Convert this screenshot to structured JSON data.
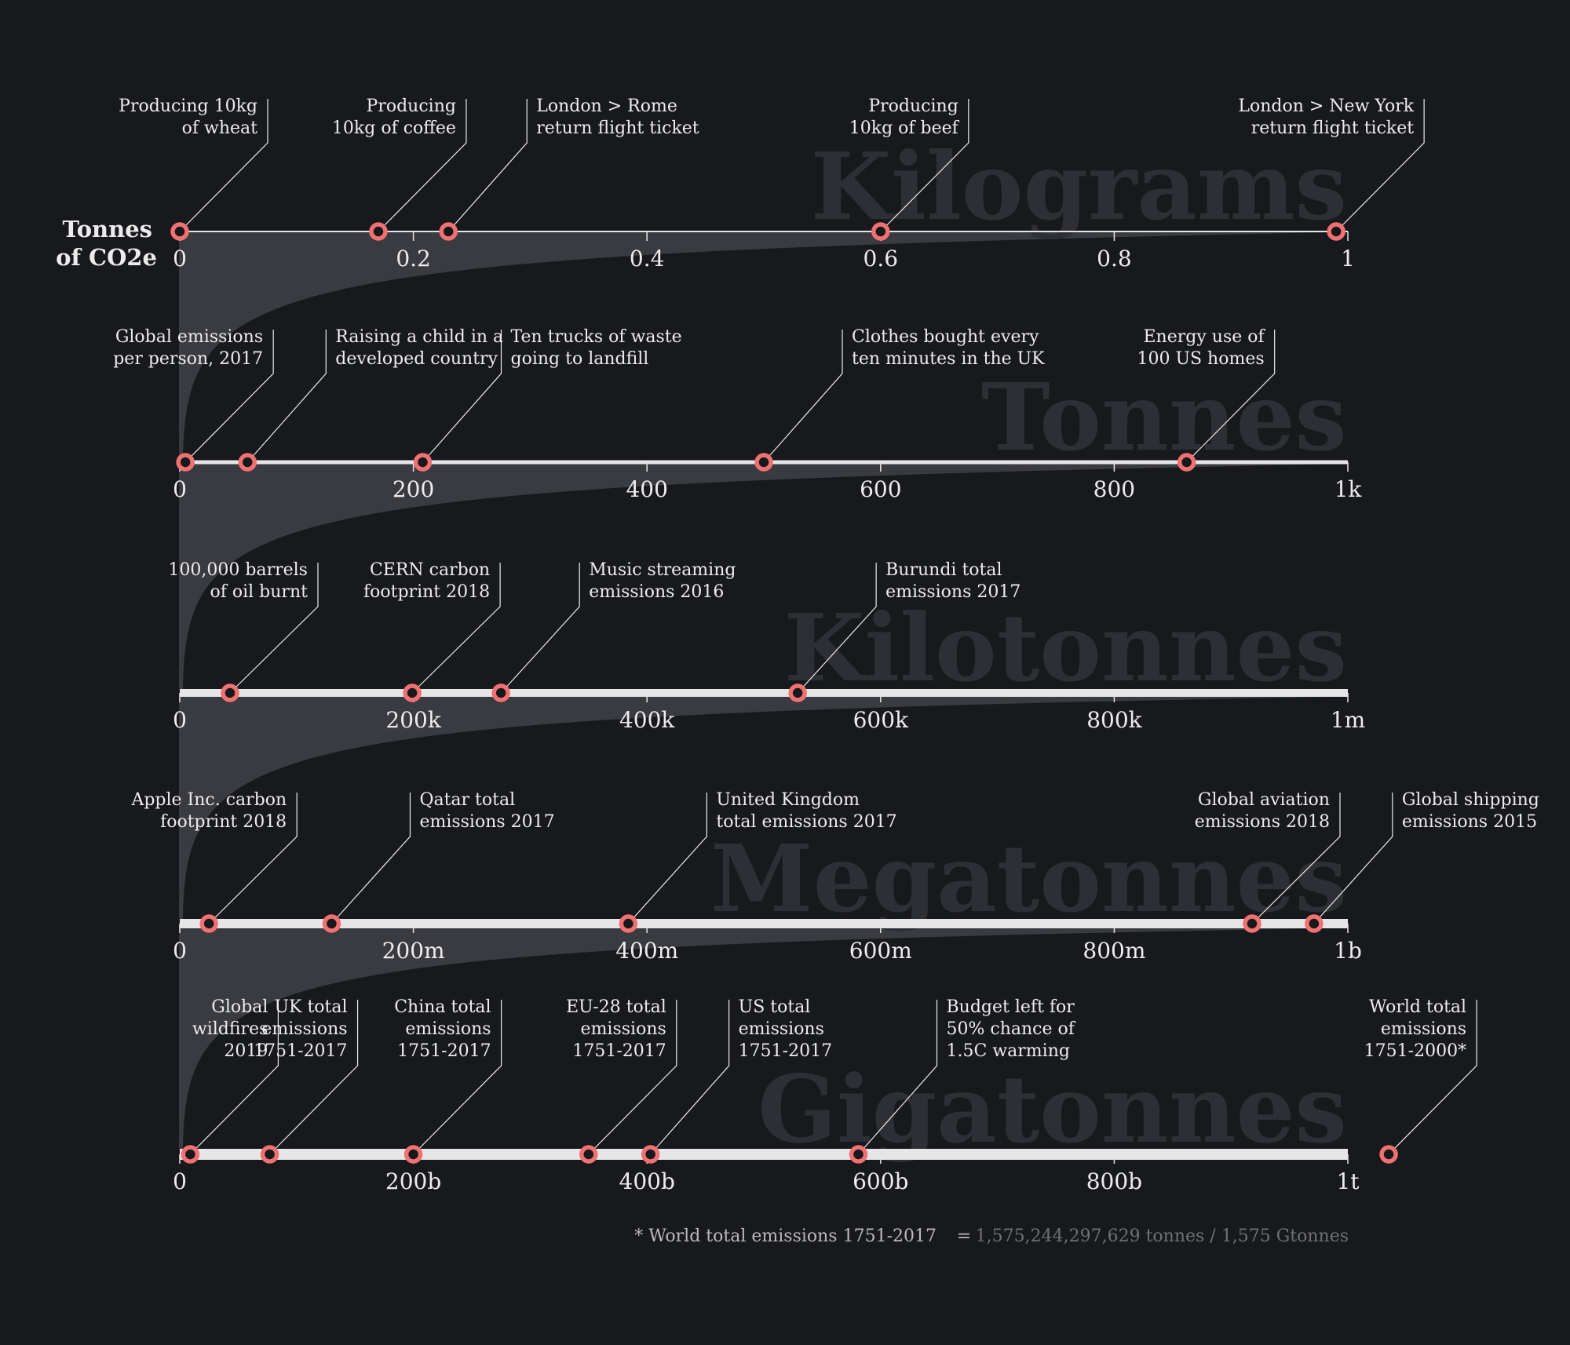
{
  "unit_label": [
    "Tonnes",
    "of CO2e"
  ],
  "footnote": {
    "label": "* World total emissions 1751-2017",
    "equals": "=",
    "value": "1,575,244,297,629 tonnes / 1,575 Gtonnes"
  },
  "colors": {
    "background": "#18191d",
    "marker": "#f07171",
    "marker_center": "#18191d",
    "axis": "#e6e6e6",
    "funnel": "#3a3b40",
    "scale_word": "#2e2f34",
    "text": "#ececec"
  },
  "chart_data": {
    "type": "scatter",
    "title": "",
    "scales": [
      {
        "name": "Kilograms",
        "max": 1,
        "ticks": [
          "0",
          "0.2",
          "0.4",
          "0.6",
          "0.8",
          "1"
        ],
        "points": [
          {
            "label": [
              "Producing 10kg",
              "of wheat"
            ],
            "value": 0.0,
            "side": "left"
          },
          {
            "label": [
              "Producing",
              "10kg of coffee"
            ],
            "value": 0.17,
            "side": "left"
          },
          {
            "label": [
              "London > Rome",
              "return flight ticket"
            ],
            "value": 0.23,
            "side": "right"
          },
          {
            "label": [
              "Producing",
              "10kg of beef"
            ],
            "value": 0.6,
            "side": "left"
          },
          {
            "label": [
              "London > New York",
              "return flight ticket"
            ],
            "value": 0.99,
            "side": "left"
          }
        ]
      },
      {
        "name": "Tonnes",
        "max": 1000,
        "ticks": [
          "0",
          "200",
          "400",
          "600",
          "800",
          "1k"
        ],
        "points": [
          {
            "label": [
              "Global emissions",
              "per person, 2017"
            ],
            "value": 4.8,
            "side": "left"
          },
          {
            "label": [
              "Raising a child in a",
              "developed country"
            ],
            "value": 58,
            "side": "right"
          },
          {
            "label": [
              "Ten trucks of waste",
              "going to landfill"
            ],
            "value": 208,
            "side": "right"
          },
          {
            "label": [
              "Clothes bought every",
              "ten minutes in the UK"
            ],
            "value": 500,
            "side": "right"
          },
          {
            "label": [
              "Energy use of",
              "100 US homes"
            ],
            "value": 862,
            "side": "left"
          }
        ]
      },
      {
        "name": "Kilotonnes",
        "max": 1000000,
        "ticks": [
          "0",
          "200k",
          "400k",
          "600k",
          "800k",
          "1m"
        ],
        "points": [
          {
            "label": [
              "100,000 barrels",
              "of oil burnt"
            ],
            "value": 43000,
            "side": "left"
          },
          {
            "label": [
              "CERN carbon",
              "footprint 2018"
            ],
            "value": 199000,
            "side": "left"
          },
          {
            "label": [
              "Music streaming",
              "emissions 2016"
            ],
            "value": 275000,
            "side": "right"
          },
          {
            "label": [
              "Burundi total",
              "emissions 2017"
            ],
            "value": 529000,
            "side": "right"
          }
        ]
      },
      {
        "name": "Megatonnes",
        "max": 1000000000,
        "ticks": [
          "0",
          "200m",
          "400m",
          "600m",
          "800m",
          "1b"
        ],
        "points": [
          {
            "label": [
              "Apple Inc. carbon",
              "footprint 2018"
            ],
            "value": 25000000,
            "side": "left"
          },
          {
            "label": [
              "Qatar total",
              "emissions 2017"
            ],
            "value": 130000000,
            "side": "right"
          },
          {
            "label": [
              "United Kingdom",
              "total emissions 2017"
            ],
            "value": 384000000,
            "side": "right"
          },
          {
            "label": [
              "Global aviation",
              "emissions 2018"
            ],
            "value": 918000000,
            "side": "left"
          },
          {
            "label": [
              "Global shipping",
              "emissions 2015"
            ],
            "value": 971000000,
            "side": "right"
          }
        ]
      },
      {
        "name": "Gigatonnes",
        "max": 1000000000000,
        "ticks": [
          "0",
          "200b",
          "400b",
          "600b",
          "800b",
          "1t"
        ],
        "points": [
          {
            "label": [
              "Global",
              "wildfires",
              "2019"
            ],
            "value": 9000000000,
            "side": "left"
          },
          {
            "label": [
              "UK total",
              "emissions",
              "1751-2017"
            ],
            "value": 77000000000,
            "side": "left"
          },
          {
            "label": [
              "China total",
              "emissions",
              "1751-2017"
            ],
            "value": 200000000000,
            "side": "left"
          },
          {
            "label": [
              "EU-28 total",
              "emissions",
              "1751-2017"
            ],
            "value": 350000000000,
            "side": "left"
          },
          {
            "label": [
              "US total",
              "emissions",
              "1751-2017"
            ],
            "value": 403000000000,
            "side": "right"
          },
          {
            "label": [
              "Budget left for",
              "50% chance of",
              "1.5C warming"
            ],
            "value": 581000000000,
            "side": "right"
          },
          {
            "label": [
              "World total",
              "emissions",
              "1751-2000*"
            ],
            "value": 1035000000000,
            "side": "left"
          }
        ]
      }
    ]
  }
}
